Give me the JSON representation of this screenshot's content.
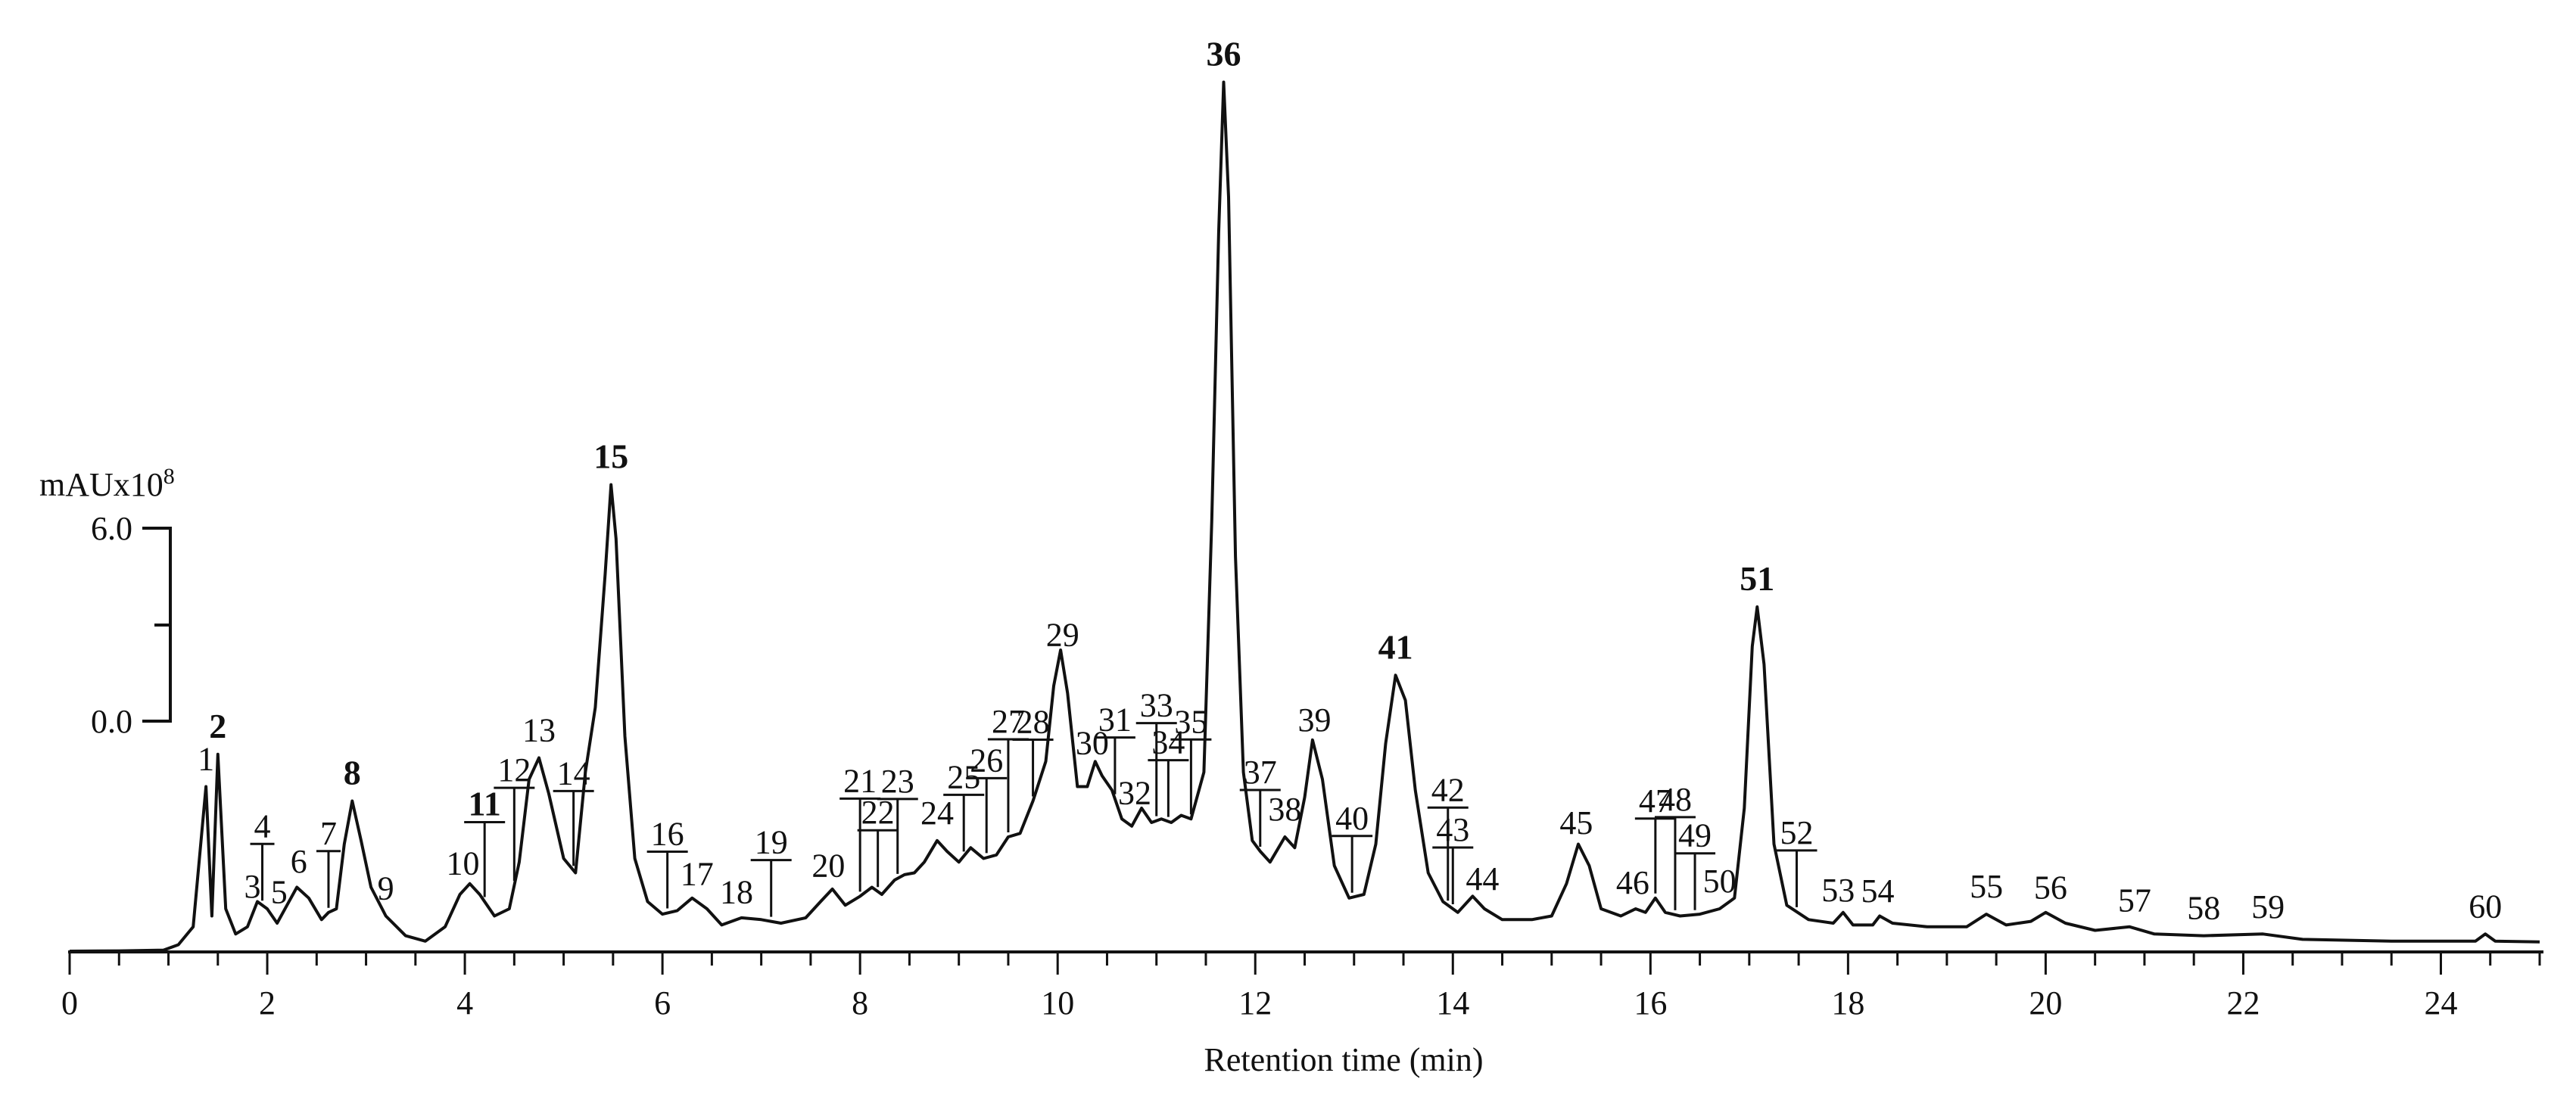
{
  "chart_data": {
    "type": "line",
    "xlabel": "Retention time (min)",
    "xlim": [
      0,
      25
    ],
    "x_ticks": [
      0,
      2,
      4,
      6,
      8,
      10,
      12,
      14,
      16,
      18,
      20,
      22,
      24
    ],
    "y_scale": {
      "unit_prefix": "mAUx10",
      "unit_exponent": "8",
      "ticks": [
        {
          "label": "6.0",
          "value": 6.0
        },
        {
          "label": "0.0",
          "value": 0.0
        }
      ]
    },
    "grid": false,
    "legend": "none",
    "trace_color": "#111111",
    "trace": [
      [
        0,
        0.02
      ],
      [
        0.5,
        0.03
      ],
      [
        0.95,
        0.05
      ],
      [
        1.1,
        0.2
      ],
      [
        1.25,
        0.7
      ],
      [
        1.38,
        4.6
      ],
      [
        1.44,
        1.0
      ],
      [
        1.5,
        5.5
      ],
      [
        1.58,
        1.2
      ],
      [
        1.68,
        0.5
      ],
      [
        1.8,
        0.7
      ],
      [
        1.9,
        1.4
      ],
      [
        2.0,
        1.2
      ],
      [
        2.1,
        0.8
      ],
      [
        2.2,
        1.3
      ],
      [
        2.3,
        1.8
      ],
      [
        2.42,
        1.5
      ],
      [
        2.55,
        0.9
      ],
      [
        2.62,
        1.1
      ],
      [
        2.7,
        1.2
      ],
      [
        2.78,
        3.0
      ],
      [
        2.86,
        4.2
      ],
      [
        2.95,
        3.1
      ],
      [
        3.05,
        1.8
      ],
      [
        3.2,
        1.0
      ],
      [
        3.4,
        0.45
      ],
      [
        3.6,
        0.3
      ],
      [
        3.8,
        0.7
      ],
      [
        3.95,
        1.6
      ],
      [
        4.05,
        1.9
      ],
      [
        4.15,
        1.6
      ],
      [
        4.3,
        1.0
      ],
      [
        4.45,
        1.2
      ],
      [
        4.55,
        2.5
      ],
      [
        4.65,
        4.8
      ],
      [
        4.75,
        5.4
      ],
      [
        4.85,
        4.4
      ],
      [
        5.0,
        2.6
      ],
      [
        5.12,
        2.2
      ],
      [
        5.22,
        5.0
      ],
      [
        5.32,
        6.8
      ],
      [
        5.42,
        10.5
      ],
      [
        5.48,
        13.0
      ],
      [
        5.53,
        11.5
      ],
      [
        5.62,
        6.0
      ],
      [
        5.72,
        2.6
      ],
      [
        5.85,
        1.4
      ],
      [
        6.0,
        1.05
      ],
      [
        6.15,
        1.15
      ],
      [
        6.3,
        1.5
      ],
      [
        6.45,
        1.2
      ],
      [
        6.6,
        0.75
      ],
      [
        6.8,
        0.95
      ],
      [
        7.0,
        0.9
      ],
      [
        7.2,
        0.8
      ],
      [
        7.45,
        0.95
      ],
      [
        7.6,
        1.4
      ],
      [
        7.72,
        1.75
      ],
      [
        7.85,
        1.3
      ],
      [
        8.0,
        1.55
      ],
      [
        8.12,
        1.8
      ],
      [
        8.22,
        1.6
      ],
      [
        8.35,
        2.0
      ],
      [
        8.45,
        2.15
      ],
      [
        8.55,
        2.2
      ],
      [
        8.65,
        2.5
      ],
      [
        8.78,
        3.1
      ],
      [
        8.88,
        2.8
      ],
      [
        9.0,
        2.5
      ],
      [
        9.12,
        2.9
      ],
      [
        9.25,
        2.6
      ],
      [
        9.38,
        2.7
      ],
      [
        9.5,
        3.2
      ],
      [
        9.62,
        3.3
      ],
      [
        9.75,
        4.2
      ],
      [
        9.88,
        5.3
      ],
      [
        9.96,
        7.4
      ],
      [
        10.03,
        8.4
      ],
      [
        10.1,
        7.2
      ],
      [
        10.2,
        4.6
      ],
      [
        10.3,
        4.6
      ],
      [
        10.38,
        5.3
      ],
      [
        10.45,
        4.9
      ],
      [
        10.55,
        4.5
      ],
      [
        10.65,
        3.7
      ],
      [
        10.75,
        3.5
      ],
      [
        10.85,
        4.0
      ],
      [
        10.95,
        3.6
      ],
      [
        11.05,
        3.7
      ],
      [
        11.15,
        3.6
      ],
      [
        11.25,
        3.8
      ],
      [
        11.35,
        3.7
      ],
      [
        11.48,
        5.0
      ],
      [
        11.56,
        12.0
      ],
      [
        11.63,
        20.0
      ],
      [
        11.68,
        24.2
      ],
      [
        11.73,
        21.0
      ],
      [
        11.8,
        11.0
      ],
      [
        11.88,
        5.0
      ],
      [
        11.97,
        3.1
      ],
      [
        12.05,
        2.8
      ],
      [
        12.15,
        2.5
      ],
      [
        12.3,
        3.2
      ],
      [
        12.4,
        2.9
      ],
      [
        12.5,
        4.3
      ],
      [
        12.58,
        5.9
      ],
      [
        12.68,
        4.8
      ],
      [
        12.8,
        2.4
      ],
      [
        12.95,
        1.5
      ],
      [
        13.1,
        1.6
      ],
      [
        13.22,
        3.0
      ],
      [
        13.32,
        5.8
      ],
      [
        13.42,
        7.7
      ],
      [
        13.52,
        7.0
      ],
      [
        13.62,
        4.5
      ],
      [
        13.75,
        2.2
      ],
      [
        13.9,
        1.4
      ],
      [
        14.05,
        1.1
      ],
      [
        14.2,
        1.55
      ],
      [
        14.32,
        1.2
      ],
      [
        14.5,
        0.9
      ],
      [
        14.8,
        0.9
      ],
      [
        15.0,
        1.0
      ],
      [
        15.15,
        1.9
      ],
      [
        15.27,
        3.0
      ],
      [
        15.38,
        2.4
      ],
      [
        15.5,
        1.2
      ],
      [
        15.7,
        1.0
      ],
      [
        15.85,
        1.2
      ],
      [
        15.95,
        1.1
      ],
      [
        16.05,
        1.5
      ],
      [
        16.15,
        1.1
      ],
      [
        16.3,
        1.0
      ],
      [
        16.5,
        1.05
      ],
      [
        16.7,
        1.2
      ],
      [
        16.85,
        1.5
      ],
      [
        16.95,
        4.0
      ],
      [
        17.03,
        8.5
      ],
      [
        17.08,
        9.6
      ],
      [
        17.15,
        8.0
      ],
      [
        17.25,
        3.0
      ],
      [
        17.38,
        1.3
      ],
      [
        17.6,
        0.9
      ],
      [
        17.85,
        0.8
      ],
      [
        17.95,
        1.1
      ],
      [
        18.05,
        0.75
      ],
      [
        18.25,
        0.75
      ],
      [
        18.32,
        1.0
      ],
      [
        18.45,
        0.8
      ],
      [
        18.8,
        0.7
      ],
      [
        19.2,
        0.7
      ],
      [
        19.4,
        1.05
      ],
      [
        19.6,
        0.75
      ],
      [
        19.85,
        0.85
      ],
      [
        20.0,
        1.1
      ],
      [
        20.2,
        0.8
      ],
      [
        20.5,
        0.6
      ],
      [
        20.85,
        0.7
      ],
      [
        21.1,
        0.5
      ],
      [
        21.6,
        0.45
      ],
      [
        22.2,
        0.5
      ],
      [
        22.6,
        0.35
      ],
      [
        23.5,
        0.3
      ],
      [
        24.35,
        0.3
      ],
      [
        24.45,
        0.5
      ],
      [
        24.55,
        0.3
      ],
      [
        25.0,
        0.28
      ]
    ],
    "peaks": [
      {
        "n": "1",
        "t": 1.38,
        "bold": false,
        "underline": false
      },
      {
        "n": "2",
        "t": 1.5,
        "bold": true,
        "underline": false
      },
      {
        "n": "3",
        "t": 1.85,
        "bold": false,
        "underline": false
      },
      {
        "n": "4",
        "t": 1.95,
        "bold": false,
        "underline": true
      },
      {
        "n": "5",
        "t": 2.12,
        "bold": false,
        "underline": false
      },
      {
        "n": "6",
        "t": 2.32,
        "bold": false,
        "underline": false
      },
      {
        "n": "7",
        "t": 2.62,
        "bold": false,
        "underline": true
      },
      {
        "n": "8",
        "t": 2.86,
        "bold": true,
        "underline": false
      },
      {
        "n": "9",
        "t": 3.2,
        "bold": false,
        "underline": false
      },
      {
        "n": "10",
        "t": 3.98,
        "bold": false,
        "underline": false
      },
      {
        "n": "11",
        "t": 4.2,
        "bold": true,
        "underline": true
      },
      {
        "n": "12",
        "t": 4.5,
        "bold": false,
        "underline": true
      },
      {
        "n": "13",
        "t": 4.75,
        "bold": false,
        "underline": false
      },
      {
        "n": "14",
        "t": 5.1,
        "bold": false,
        "underline": true
      },
      {
        "n": "15",
        "t": 5.48,
        "bold": true,
        "underline": false
      },
      {
        "n": "16",
        "t": 6.05,
        "bold": false,
        "underline": true
      },
      {
        "n": "17",
        "t": 6.35,
        "bold": false,
        "underline": false
      },
      {
        "n": "18",
        "t": 6.75,
        "bold": false,
        "underline": false
      },
      {
        "n": "19",
        "t": 7.1,
        "bold": false,
        "underline": true
      },
      {
        "n": "20",
        "t": 7.68,
        "bold": false,
        "underline": false
      },
      {
        "n": "21",
        "t": 8.0,
        "bold": false,
        "underline": true
      },
      {
        "n": "22",
        "t": 8.18,
        "bold": false,
        "underline": true
      },
      {
        "n": "23",
        "t": 8.38,
        "bold": false,
        "underline": true
      },
      {
        "n": "24",
        "t": 8.78,
        "bold": false,
        "underline": false
      },
      {
        "n": "25",
        "t": 9.05,
        "bold": false,
        "underline": true
      },
      {
        "n": "26",
        "t": 9.28,
        "bold": false,
        "underline": true
      },
      {
        "n": "27",
        "t": 9.5,
        "bold": false,
        "underline": true
      },
      {
        "n": "28",
        "t": 9.75,
        "bold": false,
        "underline": true
      },
      {
        "n": "29",
        "t": 10.05,
        "bold": false,
        "underline": false
      },
      {
        "n": "30",
        "t": 10.35,
        "bold": false,
        "underline": false
      },
      {
        "n": "31",
        "t": 10.58,
        "bold": false,
        "underline": true
      },
      {
        "n": "32",
        "t": 10.78,
        "bold": false,
        "underline": false
      },
      {
        "n": "33",
        "t": 11.0,
        "bold": false,
        "underline": true
      },
      {
        "n": "34",
        "t": 11.12,
        "bold": false,
        "underline": true
      },
      {
        "n": "35",
        "t": 11.35,
        "bold": false,
        "underline": true
      },
      {
        "n": "36",
        "t": 11.68,
        "bold": true,
        "underline": false
      },
      {
        "n": "37",
        "t": 12.05,
        "bold": false,
        "underline": true
      },
      {
        "n": "38",
        "t": 12.3,
        "bold": false,
        "underline": false
      },
      {
        "n": "39",
        "t": 12.6,
        "bold": false,
        "underline": false
      },
      {
        "n": "40",
        "t": 12.98,
        "bold": false,
        "underline": true
      },
      {
        "n": "41",
        "t": 13.42,
        "bold": true,
        "underline": false
      },
      {
        "n": "42",
        "t": 13.95,
        "bold": false,
        "underline": true
      },
      {
        "n": "43",
        "t": 14.0,
        "bold": false,
        "underline": true
      },
      {
        "n": "44",
        "t": 14.3,
        "bold": false,
        "underline": false
      },
      {
        "n": "45",
        "t": 15.25,
        "bold": false,
        "underline": false
      },
      {
        "n": "46",
        "t": 15.82,
        "bold": false,
        "underline": false
      },
      {
        "n": "47",
        "t": 16.05,
        "bold": false,
        "underline": true
      },
      {
        "n": "48",
        "t": 16.25,
        "bold": false,
        "underline": true
      },
      {
        "n": "49",
        "t": 16.45,
        "bold": false,
        "underline": true
      },
      {
        "n": "50",
        "t": 16.7,
        "bold": false,
        "underline": false
      },
      {
        "n": "51",
        "t": 17.08,
        "bold": true,
        "underline": false
      },
      {
        "n": "52",
        "t": 17.48,
        "bold": false,
        "underline": true
      },
      {
        "n": "53",
        "t": 17.9,
        "bold": false,
        "underline": false
      },
      {
        "n": "54",
        "t": 18.3,
        "bold": false,
        "underline": false
      },
      {
        "n": "55",
        "t": 19.4,
        "bold": false,
        "underline": false
      },
      {
        "n": "56",
        "t": 20.05,
        "bold": false,
        "underline": false
      },
      {
        "n": "57",
        "t": 20.9,
        "bold": false,
        "underline": false
      },
      {
        "n": "58",
        "t": 21.6,
        "bold": false,
        "underline": false
      },
      {
        "n": "59",
        "t": 22.25,
        "bold": false,
        "underline": false
      },
      {
        "n": "60",
        "t": 24.45,
        "bold": false,
        "underline": false
      }
    ]
  }
}
